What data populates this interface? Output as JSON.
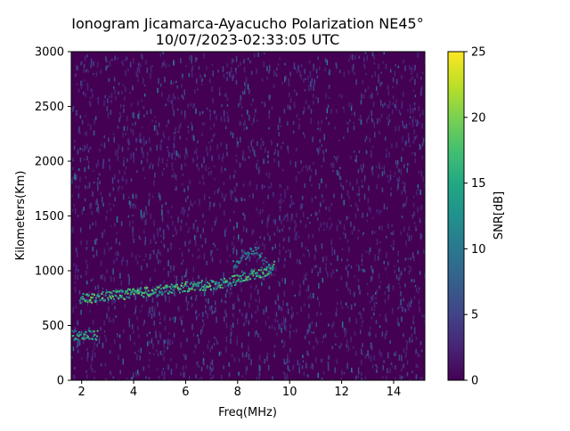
{
  "chart_data": {
    "type": "heatmap",
    "title": "Ionogram Jicamarca-Ayacucho Polarization NE45°",
    "subtitle": "10/07/2023-02:33:05 UTC",
    "xlabel": "Freq(MHz)",
    "ylabel": "Kilometers(Km)",
    "xlim": [
      1.6,
      15.2
    ],
    "ylim": [
      0,
      3000
    ],
    "xticks": [
      2,
      4,
      6,
      8,
      10,
      12,
      14
    ],
    "yticks": [
      0,
      500,
      1000,
      1500,
      2000,
      2500,
      3000
    ],
    "colorbar": {
      "label": "SNR[dB]",
      "range": [
        0,
        25
      ],
      "ticks": [
        0,
        5,
        10,
        15,
        20,
        25
      ],
      "colormap": "viridis"
    },
    "background_value_db": 0,
    "traces": [
      {
        "description": "F-layer echo trace",
        "points": [
          [
            1.9,
            750
          ],
          [
            2.5,
            760
          ],
          [
            3.0,
            780
          ],
          [
            4.0,
            800
          ],
          [
            5.0,
            830
          ],
          [
            6.0,
            860
          ],
          [
            7.0,
            880
          ],
          [
            7.5,
            900
          ],
          [
            8.0,
            930
          ],
          [
            8.5,
            970
          ],
          [
            9.0,
            1000
          ],
          [
            9.4,
            1050
          ]
        ],
        "snr_db": 20
      },
      {
        "description": "low-height echo",
        "points": [
          [
            1.6,
            420
          ],
          [
            2.6,
            420
          ]
        ],
        "snr_db": 18
      },
      {
        "description": "spread echoes",
        "points": [
          [
            7.8,
            1050
          ],
          [
            8.3,
            1150
          ],
          [
            8.7,
            1200
          ],
          [
            9.0,
            1100
          ],
          [
            9.3,
            1000
          ]
        ],
        "snr_db": 14
      }
    ]
  }
}
